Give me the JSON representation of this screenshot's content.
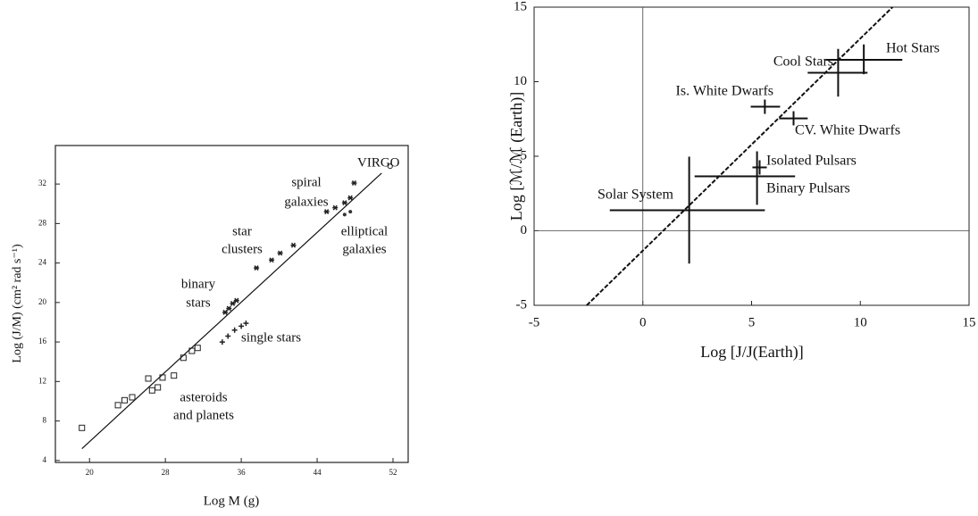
{
  "chart_data": [
    {
      "type": "scatter",
      "x_label": "Log M (g)",
      "y_label": "Log (J/M) (cm² rad s⁻¹)",
      "xlim": [
        16.4,
        53.6
      ],
      "ylim": [
        3.8,
        35.9
      ],
      "xticks": [
        20,
        28,
        36,
        44,
        52
      ],
      "yticks": [
        4,
        8,
        12,
        16,
        20,
        24,
        28,
        32
      ],
      "fit_line": {
        "x": [
          19.2,
          50.8
        ],
        "y": [
          5.2,
          33.1
        ]
      },
      "groups": [
        {
          "label": [
            "asteroids",
            "and planets"
          ],
          "marker": "square",
          "x": [
            19.2,
            23.0,
            23.7,
            24.5,
            26.2,
            26.6,
            27.2,
            27.7,
            28.9,
            29.9,
            30.8,
            31.4
          ],
          "y": [
            7.3,
            9.6,
            10.1,
            10.4,
            12.3,
            11.1,
            11.4,
            12.4,
            12.6,
            14.4,
            15.1,
            15.4
          ]
        },
        {
          "label": [
            "single stars"
          ],
          "marker": "plus",
          "x": [
            34.0,
            34.6,
            35.3,
            36.0,
            36.5
          ],
          "y": [
            16.0,
            16.6,
            17.2,
            17.6,
            17.9
          ]
        },
        {
          "label": [
            "binary",
            "stars"
          ],
          "marker": "star",
          "x": [
            34.3,
            34.7,
            35.1,
            35.5
          ],
          "y": [
            19.0,
            19.4,
            19.9,
            20.2
          ]
        },
        {
          "label": [
            "star",
            "clusters"
          ],
          "marker": "star",
          "x": [
            37.6,
            39.2,
            40.1,
            41.5
          ],
          "y": [
            23.5,
            24.3,
            25.0,
            25.8
          ]
        },
        {
          "label": [
            "spiral",
            "galaxies"
          ],
          "marker": "star",
          "x": [
            45.0,
            45.9,
            46.9,
            47.5,
            47.9
          ],
          "y": [
            29.2,
            29.6,
            30.1,
            30.6,
            32.1
          ]
        },
        {
          "label": [
            "elliptical",
            "galaxies"
          ],
          "marker": "dot",
          "x": [
            46.9,
            47.5
          ],
          "y": [
            28.9,
            29.2
          ]
        },
        {
          "label": [
            "VIRGO"
          ],
          "marker": "circle",
          "x": [
            51.7
          ],
          "y": [
            33.8
          ]
        }
      ]
    },
    {
      "type": "errorbar",
      "x_label": "Log [J/J(Earth)]",
      "y_label": "Log [ℳ/ℳ (Earth)]",
      "xlim": [
        -5,
        15
      ],
      "ylim": [
        -5,
        15
      ],
      "xticks": [
        -5,
        0,
        5,
        10,
        15
      ],
      "yticks": [
        -5,
        0,
        5,
        10,
        15
      ],
      "zero_lines": true,
      "fit_line": {
        "x": [
          -2.58,
          11.48
        ],
        "y": [
          -5,
          15
        ]
      },
      "points": [
        {
          "label": "Solar System",
          "x": 2.13,
          "y": 1.38,
          "xmin": -1.52,
          "xmax": 5.61,
          "ymin": -2.2,
          "ymax": 4.97
        },
        {
          "label": "Binary Pulsars",
          "x": 5.25,
          "y": 3.65,
          "xmin": 2.38,
          "xmax": 7.0,
          "ymin": 1.74,
          "ymax": 5.33
        },
        {
          "label": "Isolated Pulsars",
          "x": 5.37,
          "y": 4.25,
          "xmin": 5.04,
          "xmax": 5.7,
          "ymin": 3.77,
          "ymax": 4.73
        },
        {
          "label": "Is. White Dwarfs",
          "x": 5.61,
          "y": 8.32,
          "xmin": 4.96,
          "xmax": 6.31,
          "ymin": 7.84,
          "ymax": 8.8
        },
        {
          "label": "CV. White Dwarfs",
          "x": 6.93,
          "y": 7.54,
          "xmin": 6.27,
          "xmax": 7.58,
          "ymin": 7.07,
          "ymax": 8.02
        },
        {
          "label": "Cool Stars",
          "x": 8.98,
          "y": 10.6,
          "xmin": 7.58,
          "xmax": 10.33,
          "ymin": 9.0,
          "ymax": 12.2
        },
        {
          "label": "Hot Stars",
          "x": 10.16,
          "y": 11.47,
          "xmin": 8.4,
          "xmax": 11.93,
          "ymin": 10.5,
          "ymax": 12.5
        }
      ]
    }
  ]
}
